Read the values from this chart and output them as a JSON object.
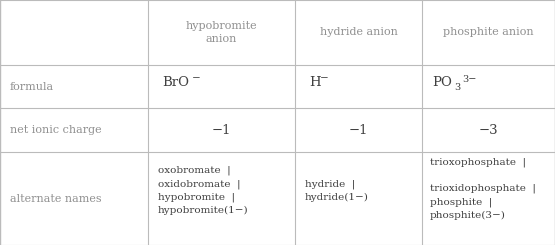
{
  "col_headers": [
    "hypobromite\nanion",
    "hydride anion",
    "phosphite anion"
  ],
  "row_headers": [
    "formula",
    "net ionic charge",
    "alternate names"
  ],
  "charge_row": [
    "−1",
    "−1",
    "−3"
  ],
  "names_row": [
    "oxobromate  |\noxidobromate  |\nhypobromite  |\nhypobromite(1−)",
    "hydride  |\nhydride(1−)",
    "trioxophosphate  |\n\ntrioxidophosphate  |\nphosphite  |\nphosphite(3−)"
  ],
  "grid_color": "#bbbbbb",
  "text_color": "#404040",
  "header_text_color": "#909090",
  "bg_color": "#ffffff",
  "col_bounds": [
    0,
    148,
    295,
    422,
    555
  ],
  "row_bounds": [
    0,
    65,
    108,
    152,
    245
  ]
}
